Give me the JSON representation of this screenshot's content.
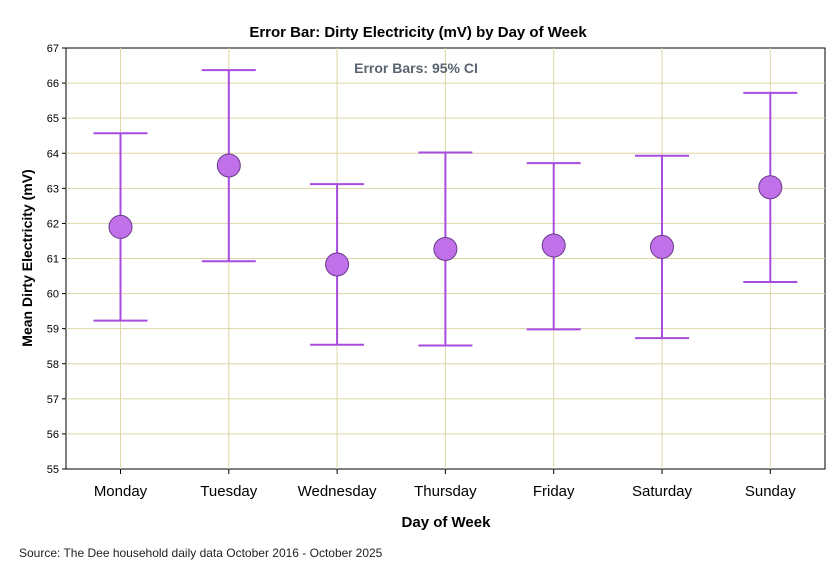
{
  "chart_data": {
    "type": "errorbar",
    "title": "Error Bar: Dirty Electricity (mV) by Day of Week",
    "annotation": "Error Bars: 95% CI",
    "xlabel": "Day of Week",
    "ylabel": "Mean Dirty Electricity (mV)",
    "ylim": [
      55,
      67
    ],
    "yticks": [
      "55",
      "56",
      "57",
      "58",
      "59",
      "60",
      "61",
      "62",
      "63",
      "64",
      "65",
      "66",
      "67"
    ],
    "categories": [
      "Monday",
      "Tuesday",
      "Wednesday",
      "Thursday",
      "Friday",
      "Saturday",
      "Sunday"
    ],
    "means": [
      61.9,
      63.65,
      60.83,
      61.27,
      61.37,
      61.33,
      63.03
    ],
    "lower": [
      59.23,
      60.92,
      58.54,
      58.52,
      58.98,
      58.73,
      60.33
    ],
    "upper": [
      64.57,
      66.37,
      63.12,
      64.02,
      63.72,
      63.93,
      65.72
    ],
    "grid": true,
    "colors": {
      "marker": "#c070e8",
      "marker_edge": "#6a3a8a",
      "bar": "#a84be0",
      "grid": "#ddd6a8",
      "axis": "#000000"
    }
  },
  "footer": {
    "source": "Source: The Dee household daily data October 2016 - October 2025"
  }
}
